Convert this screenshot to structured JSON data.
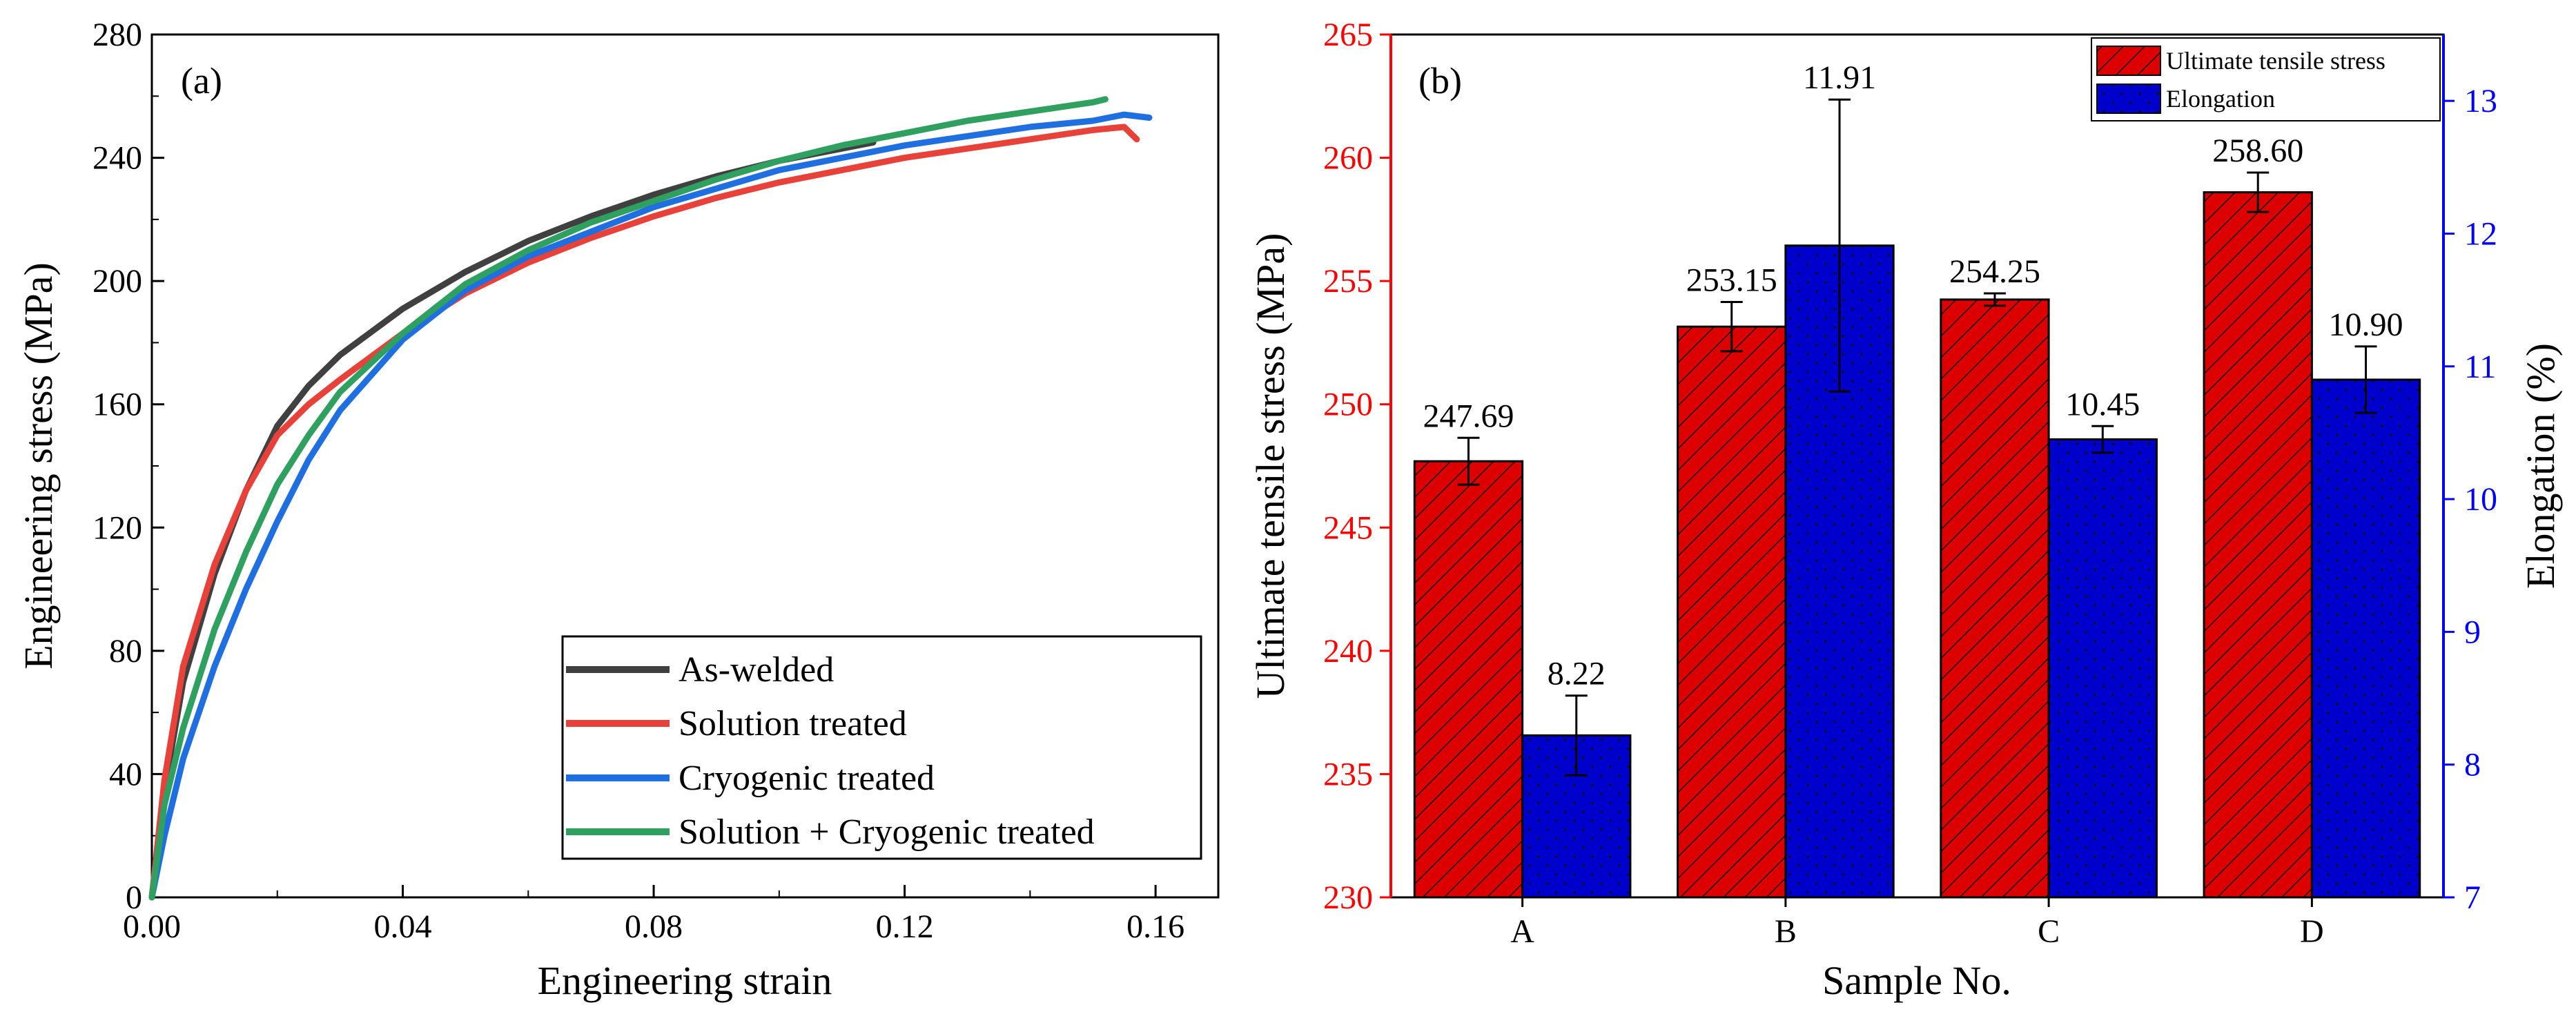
{
  "chart_data": [
    {
      "type": "line",
      "panel_label": "(a)",
      "xlabel": "Engineering strain",
      "ylabel": "Engineering stress (MPa)",
      "xlim": [
        0,
        0.17
      ],
      "ylim": [
        0,
        280
      ],
      "xticks": [
        0.0,
        0.04,
        0.08,
        0.12,
        0.16
      ],
      "xtick_labels": [
        "0.00",
        "0.04",
        "0.08",
        "0.12",
        "0.16"
      ],
      "yticks": [
        0,
        40,
        80,
        120,
        160,
        200,
        240,
        280
      ],
      "ytick_labels": [
        "0",
        "40",
        "80",
        "120",
        "160",
        "200",
        "240",
        "280"
      ],
      "legend_position": "bottom-right",
      "series": [
        {
          "name": "As-welded",
          "color": "#404040",
          "x": [
            0,
            0.002,
            0.005,
            0.01,
            0.015,
            0.02,
            0.025,
            0.03,
            0.04,
            0.05,
            0.06,
            0.07,
            0.08,
            0.09,
            0.1,
            0.11,
            0.115
          ],
          "y": [
            0,
            35,
            70,
            105,
            132,
            153,
            166,
            176,
            191,
            203,
            213,
            221,
            228,
            234,
            239,
            243,
            245
          ]
        },
        {
          "name": "Solution treated",
          "color": "#e8413a",
          "x": [
            0,
            0.002,
            0.005,
            0.01,
            0.015,
            0.02,
            0.025,
            0.03,
            0.04,
            0.05,
            0.06,
            0.07,
            0.08,
            0.09,
            0.1,
            0.11,
            0.12,
            0.13,
            0.14,
            0.15,
            0.155,
            0.157
          ],
          "y": [
            0,
            38,
            75,
            108,
            132,
            150,
            160,
            168,
            183,
            196,
            206,
            214,
            221,
            227,
            232,
            236,
            240,
            243,
            246,
            249,
            250,
            246
          ]
        },
        {
          "name": "Cryogenic treated",
          "color": "#1f6fe0",
          "x": [
            0,
            0.002,
            0.005,
            0.01,
            0.015,
            0.02,
            0.025,
            0.03,
            0.04,
            0.05,
            0.06,
            0.07,
            0.08,
            0.09,
            0.1,
            0.11,
            0.12,
            0.13,
            0.14,
            0.15,
            0.155,
            0.159
          ],
          "y": [
            0,
            20,
            45,
            75,
            100,
            122,
            142,
            158,
            181,
            197,
            208,
            216,
            224,
            230,
            236,
            240,
            244,
            247,
            250,
            252,
            254,
            253
          ]
        },
        {
          "name": "Solution + Cryogenic treated",
          "color": "#2fa060",
          "x": [
            0,
            0.002,
            0.005,
            0.01,
            0.015,
            0.02,
            0.025,
            0.03,
            0.04,
            0.05,
            0.06,
            0.07,
            0.08,
            0.09,
            0.1,
            0.11,
            0.12,
            0.13,
            0.14,
            0.15,
            0.152
          ],
          "y": [
            0,
            30,
            55,
            87,
            112,
            134,
            150,
            164,
            183,
            199,
            210,
            219,
            226,
            233,
            239,
            244,
            248,
            252,
            255,
            258,
            259
          ]
        }
      ]
    },
    {
      "type": "bar",
      "panel_label": "(b)",
      "xlabel": "Sample No.",
      "ylabel": "Ultimate tensile stress (MPa)",
      "y2label": "Elongation (%)",
      "categories": [
        "A",
        "B",
        "C",
        "D"
      ],
      "ylim": [
        230,
        265
      ],
      "y2lim": [
        7,
        13.5
      ],
      "yticks": [
        230,
        235,
        240,
        245,
        250,
        255,
        260,
        265
      ],
      "ytick_labels": [
        "230",
        "235",
        "240",
        "245",
        "250",
        "255",
        "260",
        "265"
      ],
      "y2ticks": [
        7,
        8,
        9,
        10,
        11,
        12,
        13
      ],
      "y2tick_labels": [
        "7",
        "8",
        "9",
        "10",
        "11",
        "12",
        "13"
      ],
      "legend_position": "top-right",
      "left_axis_color": "#ff0000",
      "right_axis_color": "#0000ff",
      "series": [
        {
          "name": "Ultimate tensile stress",
          "axis": "left",
          "color": "#dd0000",
          "pattern": "diagonal-hatch",
          "values": [
            247.69,
            253.15,
            254.25,
            258.6
          ],
          "errors": [
            0.95,
            1.0,
            0.25,
            0.8
          ],
          "value_labels": [
            "247.69",
            "253.15",
            "254.25",
            "258.60"
          ]
        },
        {
          "name": "Elongation",
          "axis": "right",
          "color": "#0000cc",
          "pattern": "dots",
          "values": [
            8.22,
            11.91,
            10.45,
            10.9
          ],
          "errors": [
            0.3,
            1.1,
            0.1,
            0.25
          ],
          "value_labels": [
            "8.22",
            "11.91",
            "10.45",
            "10.90"
          ]
        }
      ]
    }
  ]
}
